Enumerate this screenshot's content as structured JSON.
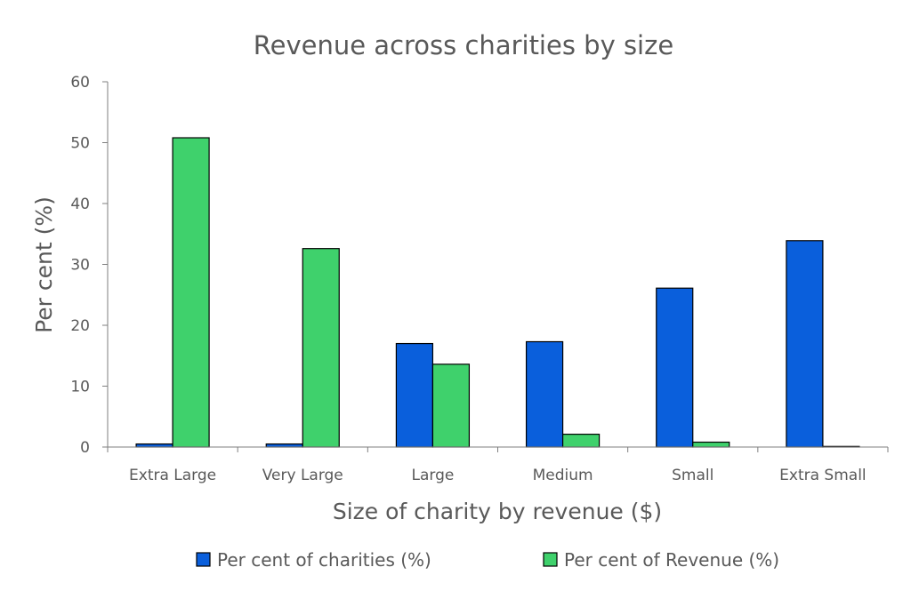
{
  "chart_data": {
    "type": "bar",
    "title": "Revenue across charities by size",
    "xlabel": "Size of charity by revenue ($)",
    "ylabel": "Per cent (%)",
    "categories": [
      "Extra Large",
      "Very Large",
      "Large",
      "Medium",
      "Small",
      "Extra Small"
    ],
    "series": [
      {
        "name": "Per cent of charities (%)",
        "color": "#0A5FDC",
        "values": [
          0.5,
          0.5,
          17.0,
          17.3,
          26.1,
          33.9
        ]
      },
      {
        "name": "Per cent of Revenue (%)",
        "color": "#3FD16C",
        "values": [
          50.8,
          32.6,
          13.6,
          2.1,
          0.8,
          0.1
        ]
      }
    ],
    "ylim": [
      0,
      60
    ],
    "yticks": [
      0,
      10,
      20,
      30,
      40,
      50,
      60
    ],
    "grid": false,
    "legend": "bottom"
  }
}
